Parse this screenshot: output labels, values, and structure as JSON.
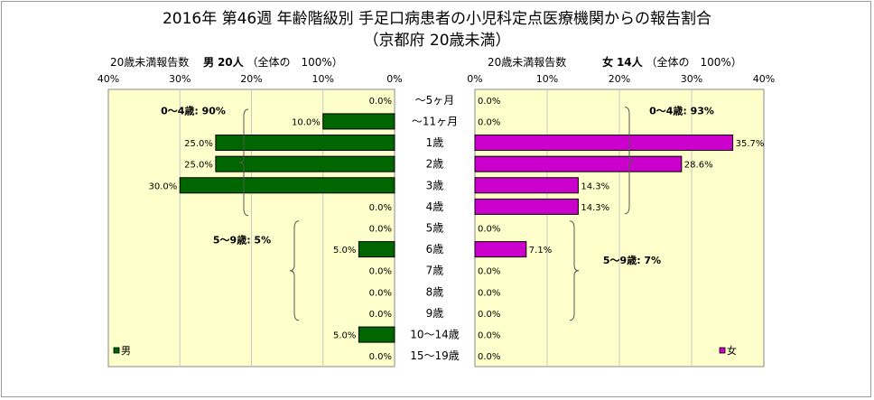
{
  "title_line1": "2016年 第46週 年齢階級別 手足口病患者の小児科定点医療機関からの報告割合",
  "title_line2": "（京都府 20歳未満）",
  "chart_data": {
    "type": "bar",
    "categories": [
      "～5ヶ月",
      "～11ヶ月",
      "1歳",
      "2歳",
      "3歳",
      "4歳",
      "5歳",
      "6歳",
      "7歳",
      "8歳",
      "9歳",
      "10～14歳",
      "15～19歳"
    ],
    "series": [
      {
        "name": "男",
        "color": "#006600",
        "header_label": "20歳未満報告数",
        "header_sex": "男",
        "header_count": "20人",
        "header_note": "（全体の　100%）",
        "values": [
          0.0,
          10.0,
          25.0,
          25.0,
          30.0,
          0.0,
          0.0,
          5.0,
          0.0,
          0.0,
          0.0,
          5.0,
          0.0
        ],
        "labels": [
          "0.0%",
          "10.0%",
          "25.0%",
          "25.0%",
          "30.0%",
          "0.0%",
          "0.0%",
          "5.0%",
          "0.0%",
          "0.0%",
          "0.0%",
          "5.0%",
          "0.0%"
        ],
        "axis_ticks": [
          "40%",
          "30%",
          "20%",
          "10%",
          "0%"
        ],
        "xlim": [
          0,
          40
        ],
        "annotations": [
          "0～4歳: 90%",
          "5～9歳: 5%"
        ]
      },
      {
        "name": "女",
        "color": "#cc00cc",
        "header_label": "20歳未満報告数",
        "header_sex": "女",
        "header_count": "14人",
        "header_note": "（全体の　100%）",
        "values": [
          0.0,
          0.0,
          35.7,
          28.6,
          14.3,
          14.3,
          0.0,
          7.1,
          0.0,
          0.0,
          0.0,
          0.0,
          0.0
        ],
        "labels": [
          "0.0%",
          "0.0%",
          "35.7%",
          "28.6%",
          "14.3%",
          "14.3%",
          "0.0%",
          "7.1%",
          "0.0%",
          "0.0%",
          "0.0%",
          "0.0%",
          "0.0%"
        ],
        "axis_ticks": [
          "0%",
          "10%",
          "20%",
          "30%",
          "40%"
        ],
        "xlim": [
          0,
          40
        ],
        "annotations": [
          "0～4歳: 93%",
          "5～9歳: 7%"
        ]
      }
    ],
    "plot_background": "#ffffcc",
    "grid": true
  }
}
